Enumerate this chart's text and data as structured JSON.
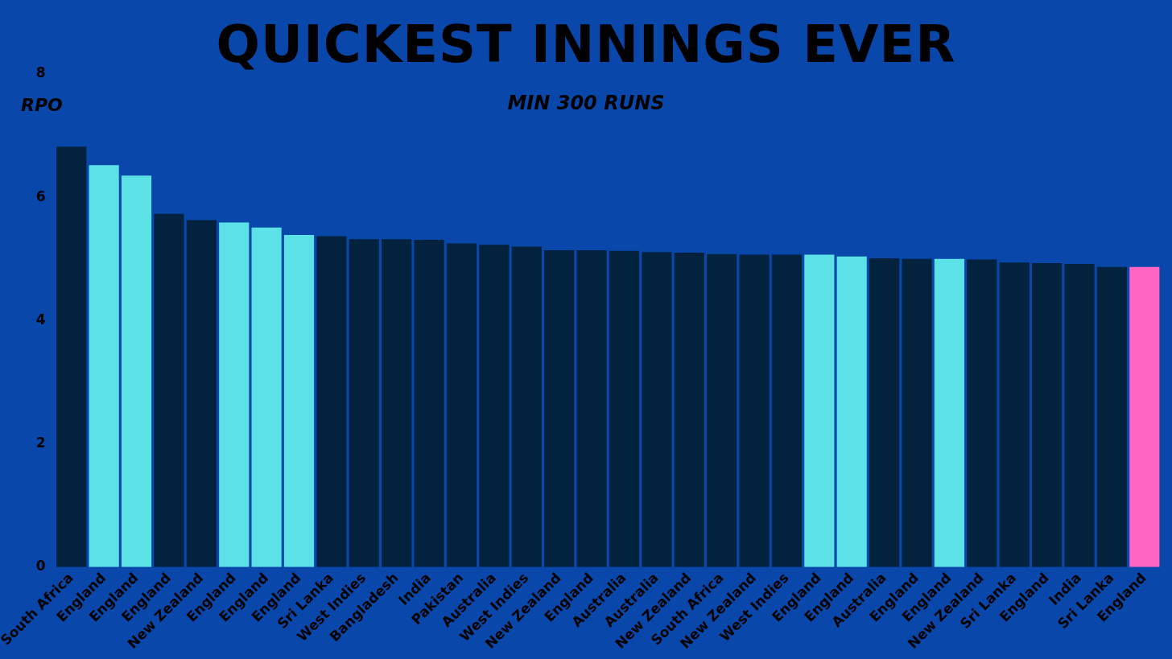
{
  "chart_data": {
    "type": "bar",
    "title": "QUICKEST INNINGS EVER",
    "subtitle": "MIN 300 RUNS",
    "ylabel": "RPO",
    "categories": [
      "South Africa",
      "England",
      "England",
      "England",
      "New Zealand",
      "England",
      "England",
      "England",
      "Sri Lanka",
      "West Indies",
      "Bangladesh",
      "India",
      "Pakistan",
      "Australia",
      "West Indies",
      "New Zealand",
      "England",
      "Australia",
      "Australia",
      "New Zealand",
      "South Africa",
      "New Zealand",
      "West Indies",
      "England",
      "England",
      "Australia",
      "England",
      "England",
      "New Zealand",
      "Sri Lanka",
      "England",
      "India",
      "Sri Lanka",
      "England"
    ],
    "values": [
      6.82,
      6.52,
      6.35,
      5.73,
      5.63,
      5.59,
      5.51,
      5.39,
      5.37,
      5.32,
      5.32,
      5.31,
      5.25,
      5.23,
      5.2,
      5.14,
      5.14,
      5.13,
      5.11,
      5.1,
      5.08,
      5.07,
      5.07,
      5.07,
      5.04,
      5.01,
      5.0,
      5.0,
      4.99,
      4.94,
      4.93,
      4.92,
      4.87,
      4.87
    ],
    "colors": [
      "#02223d",
      "#5ce1e6",
      "#5ce1e6",
      "#02223d",
      "#02223d",
      "#5ce1e6",
      "#5ce1e6",
      "#5ce1e6",
      "#02223d",
      "#02223d",
      "#02223d",
      "#02223d",
      "#02223d",
      "#02223d",
      "#02223d",
      "#02223d",
      "#02223d",
      "#02223d",
      "#02223d",
      "#02223d",
      "#02223d",
      "#02223d",
      "#02223d",
      "#5ce1e6",
      "#5ce1e6",
      "#02223d",
      "#02223d",
      "#5ce1e6",
      "#02223d",
      "#02223d",
      "#02223d",
      "#02223d",
      "#02223d",
      "#ff66c4"
    ],
    "ylim": [
      0,
      8
    ],
    "yticks": [
      0,
      2,
      4,
      6,
      8
    ],
    "grid": false,
    "legend": false
  }
}
